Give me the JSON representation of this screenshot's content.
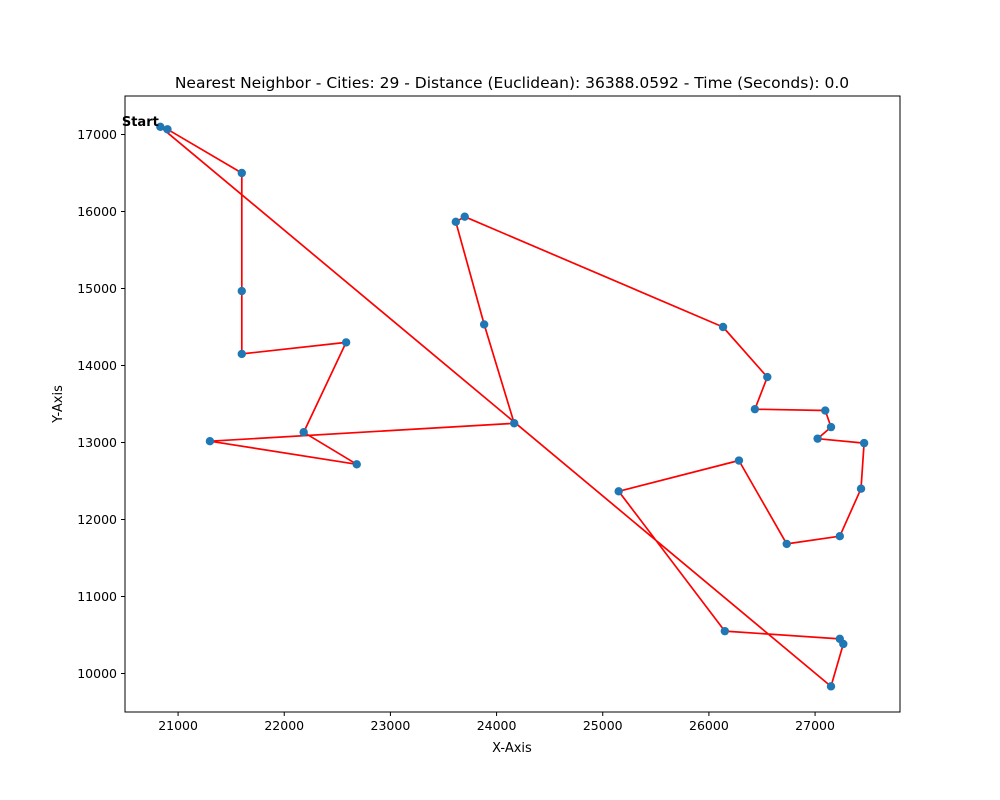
{
  "chart_data": {
    "type": "scatter",
    "title": "Nearest Neighbor - Cities: 29 - Distance (Euclidean): 36388.0592 - Time (Seconds): 0.0",
    "xlabel": "X-Axis",
    "ylabel": "Y-Axis",
    "xlim": [
      20500,
      27800
    ],
    "ylim": [
      9500,
      17500
    ],
    "x_ticks": [
      21000,
      22000,
      23000,
      24000,
      25000,
      26000,
      27000
    ],
    "y_ticks": [
      10000,
      11000,
      12000,
      13000,
      14000,
      15000,
      16000,
      17000
    ],
    "grid": false,
    "start_label": "Start",
    "point_color": "#1f77b4",
    "line_color": "#ff0000",
    "route": [
      [
        20833,
        17100
      ],
      [
        20900,
        17067
      ],
      [
        21600,
        16500
      ],
      [
        21600,
        14967
      ],
      [
        21600,
        14150
      ],
      [
        22583,
        14300
      ],
      [
        22183,
        13133
      ],
      [
        22683,
        12717
      ],
      [
        21300,
        13017
      ],
      [
        24166,
        13250
      ],
      [
        23883,
        14533
      ],
      [
        23616,
        15866
      ],
      [
        23700,
        15933
      ],
      [
        26133,
        14500
      ],
      [
        26550,
        13850
      ],
      [
        26433,
        13433
      ],
      [
        27096,
        13415
      ],
      [
        27150,
        13200
      ],
      [
        27024,
        13050
      ],
      [
        27462,
        12992
      ],
      [
        27433,
        12400
      ],
      [
        27233,
        11783
      ],
      [
        26733,
        11683
      ],
      [
        26283,
        12766
      ],
      [
        25150,
        12366
      ],
      [
        26150,
        10550
      ],
      [
        27233,
        10450
      ],
      [
        27266,
        10383
      ],
      [
        27150,
        9833
      ],
      [
        20833,
        17100
      ]
    ]
  }
}
